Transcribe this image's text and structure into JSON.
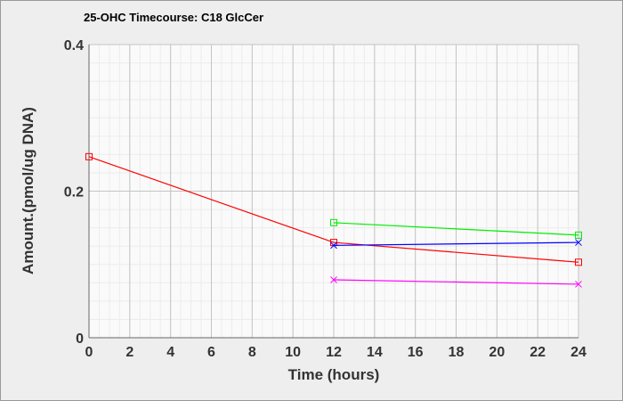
{
  "chart_data": {
    "type": "line",
    "title": "25-OHC Timecourse: C18 GlcCer",
    "xlabel": "Time (hours)",
    "ylabel": "Amount.(pmol/ug DNA)",
    "xlim": [
      0,
      24
    ],
    "ylim": [
      0,
      0.4
    ],
    "xticks": [
      0,
      2,
      4,
      6,
      8,
      10,
      12,
      14,
      16,
      18,
      20,
      22,
      24
    ],
    "yticks": [
      0,
      0.2,
      0.4
    ],
    "ytick_labels": [
      "0",
      "0.2",
      "0.4"
    ],
    "grid": true,
    "series": [
      {
        "name": "red",
        "color": "#ff0000",
        "marker": "square",
        "x": [
          0,
          12,
          24
        ],
        "y": [
          0.247,
          0.13,
          0.103
        ]
      },
      {
        "name": "green",
        "color": "#00ee00",
        "marker": "square",
        "x": [
          12,
          24
        ],
        "y": [
          0.157,
          0.14
        ]
      },
      {
        "name": "blue",
        "color": "#0000ff",
        "marker": "x",
        "x": [
          12,
          24
        ],
        "y": [
          0.126,
          0.13
        ]
      },
      {
        "name": "magenta",
        "color": "#ff00ff",
        "marker": "x",
        "x": [
          12,
          24
        ],
        "y": [
          0.079,
          0.073
        ]
      }
    ]
  }
}
